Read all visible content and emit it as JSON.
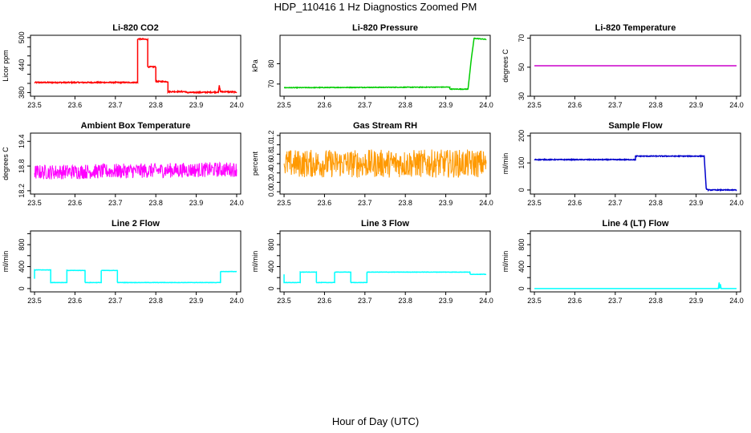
{
  "figure": {
    "title": "HDP_110416  1 Hz Diagnostics Zoomed PM",
    "xlabel": "Hour of Day (UTC)"
  },
  "chart_data": [
    {
      "type": "line",
      "title": "Li-820 CO2",
      "ylabel": "Licor ppm",
      "color": "#ff0000",
      "xlim": [
        23.49,
        24.01
      ],
      "ylim": [
        372,
        505
      ],
      "xticks": [
        23.5,
        23.6,
        23.7,
        23.8,
        23.9,
        24.0
      ],
      "xtick_labels": [
        "23.5",
        "23.6",
        "23.7",
        "23.8",
        "23.9",
        "24.0"
      ],
      "yticks": [
        380,
        400,
        420,
        440,
        460,
        480,
        500
      ],
      "ytick_labels": [
        "380",
        "",
        "",
        "440",
        "",
        "",
        "500"
      ],
      "noise": 1.2,
      "x": [
        23.5,
        23.755,
        23.755,
        23.78,
        23.78,
        23.8,
        23.8,
        23.83,
        23.83,
        23.875,
        23.875,
        23.955,
        23.957,
        23.96,
        23.965,
        24.0
      ],
      "y": [
        402,
        402,
        497,
        496,
        436,
        436,
        404,
        404,
        382,
        382,
        380,
        381,
        395,
        382,
        382,
        381
      ]
    },
    {
      "type": "line",
      "title": "Li-820 Pressure",
      "ylabel": "kPa",
      "color": "#00cc00",
      "xlim": [
        23.49,
        24.01
      ],
      "ylim": [
        64,
        94
      ],
      "xticks": [
        23.5,
        23.6,
        23.7,
        23.8,
        23.9,
        24.0
      ],
      "xtick_labels": [
        "23.5",
        "23.6",
        "23.7",
        "23.8",
        "23.9",
        "24.0"
      ],
      "yticks": [
        70,
        80
      ],
      "ytick_labels": [
        "70",
        "80"
      ],
      "noise": 0.15,
      "x": [
        23.5,
        23.91,
        23.91,
        23.955,
        23.963,
        23.97,
        24.0
      ],
      "y": [
        68.2,
        68.5,
        67.5,
        67.5,
        82,
        92.5,
        92
      ]
    },
    {
      "type": "line",
      "title": "Li-820 Temperature",
      "ylabel": "degrees C",
      "color": "#cc00cc",
      "xlim": [
        23.49,
        24.01
      ],
      "ylim": [
        30,
        72
      ],
      "xticks": [
        23.5,
        23.6,
        23.7,
        23.8,
        23.9,
        24.0
      ],
      "xtick_labels": [
        "23.5",
        "23.6",
        "23.7",
        "23.8",
        "23.9",
        "24.0"
      ],
      "yticks": [
        30,
        50,
        70
      ],
      "ytick_labels": [
        "30",
        "50",
        "70"
      ],
      "noise": 0,
      "x": [
        23.5,
        24.0
      ],
      "y": [
        51,
        51
      ]
    },
    {
      "type": "line",
      "title": "Ambient Box Temperature",
      "ylabel": "degrees C",
      "color": "#ff00ff",
      "xlim": [
        23.49,
        24.01
      ],
      "ylim": [
        18.12,
        19.6
      ],
      "xticks": [
        23.5,
        23.6,
        23.7,
        23.8,
        23.9,
        24.0
      ],
      "xtick_labels": [
        "23.5",
        "23.6",
        "23.7",
        "23.8",
        "23.9",
        "24.0"
      ],
      "yticks": [
        18.2,
        18.8,
        19.4
      ],
      "ytick_labels": [
        "18.2",
        "18.8",
        "19.4"
      ],
      "noise": 0.18,
      "x": [
        23.5,
        24.0
      ],
      "y": [
        18.65,
        18.72
      ]
    },
    {
      "type": "line",
      "title": "Gas Stream RH",
      "ylabel": "percent",
      "color": "#ff9900",
      "xlim": [
        23.49,
        24.01
      ],
      "ylim": [
        -0.05,
        1.25
      ],
      "xticks": [
        23.5,
        23.6,
        23.7,
        23.8,
        23.9,
        24.0
      ],
      "xtick_labels": [
        "23.5",
        "23.6",
        "23.7",
        "23.8",
        "23.9",
        "24.0"
      ],
      "yticks": [
        0.0,
        0.2,
        0.4,
        0.6,
        0.8,
        1.0,
        1.2
      ],
      "ytick_labels": [
        "0.0",
        "0.2",
        "0.4",
        "0.6",
        "0.8",
        "1.0",
        "1.2"
      ],
      "noise": 0.3,
      "x": [
        23.5,
        24.0
      ],
      "y": [
        0.6,
        0.6
      ]
    },
    {
      "type": "line",
      "title": "Sample Flow",
      "ylabel": "ml/min",
      "color": "#0000cc",
      "xlim": [
        23.49,
        24.01
      ],
      "ylim": [
        -15,
        210
      ],
      "xticks": [
        23.5,
        23.6,
        23.7,
        23.8,
        23.9,
        24.0
      ],
      "xtick_labels": [
        "23.5",
        "23.6",
        "23.7",
        "23.8",
        "23.9",
        "24.0"
      ],
      "yticks": [
        0,
        100,
        200
      ],
      "ytick_labels": [
        "0",
        "100",
        "200"
      ],
      "noise": 1.5,
      "x": [
        23.5,
        23.75,
        23.75,
        23.92,
        23.925,
        23.93,
        24.0
      ],
      "y": [
        112,
        112,
        125,
        125,
        5,
        0,
        0
      ]
    },
    {
      "type": "line",
      "title": "Line 2 Flow",
      "ylabel": "ml/min",
      "color": "#00ffff",
      "xlim": [
        23.49,
        24.01
      ],
      "ylim": [
        -60,
        1050
      ],
      "xticks": [
        23.5,
        23.6,
        23.7,
        23.8,
        23.9,
        24.0
      ],
      "xtick_labels": [
        "23.5",
        "23.6",
        "23.7",
        "23.8",
        "23.9",
        "24.0"
      ],
      "yticks": [
        0,
        200,
        400,
        600,
        800,
        1000
      ],
      "ytick_labels": [
        "0",
        "",
        "400",
        "",
        "800",
        ""
      ],
      "noise": 3,
      "x": [
        23.5,
        23.5,
        23.54,
        23.54,
        23.58,
        23.58,
        23.625,
        23.625,
        23.665,
        23.665,
        23.705,
        23.705,
        23.96,
        23.96,
        24.0
      ],
      "y": [
        180,
        340,
        340,
        110,
        110,
        330,
        330,
        110,
        110,
        330,
        330,
        110,
        110,
        310,
        310
      ]
    },
    {
      "type": "line",
      "title": "Line 3 Flow",
      "ylabel": "ml/min",
      "color": "#00ffff",
      "xlim": [
        23.49,
        24.01
      ],
      "ylim": [
        -60,
        1050
      ],
      "xticks": [
        23.5,
        23.6,
        23.7,
        23.8,
        23.9,
        24.0
      ],
      "xtick_labels": [
        "23.5",
        "23.6",
        "23.7",
        "23.8",
        "23.9",
        "24.0"
      ],
      "yticks": [
        0,
        200,
        400,
        600,
        800,
        1000
      ],
      "ytick_labels": [
        "0",
        "",
        "400",
        "",
        "800",
        ""
      ],
      "noise": 3,
      "x": [
        23.5,
        23.5,
        23.505,
        23.54,
        23.54,
        23.58,
        23.58,
        23.625,
        23.625,
        23.665,
        23.665,
        23.705,
        23.705,
        23.96,
        23.96,
        24.0
      ],
      "y": [
        260,
        110,
        110,
        110,
        300,
        300,
        110,
        110,
        300,
        300,
        110,
        110,
        300,
        300,
        260,
        260
      ]
    },
    {
      "type": "line",
      "title": "Line 4 (LT) Flow",
      "ylabel": "ml/min",
      "color": "#00ffff",
      "xlim": [
        23.49,
        24.01
      ],
      "ylim": [
        -60,
        1050
      ],
      "xticks": [
        23.5,
        23.6,
        23.7,
        23.8,
        23.9,
        24.0
      ],
      "xtick_labels": [
        "23.5",
        "23.6",
        "23.7",
        "23.8",
        "23.9",
        "24.0"
      ],
      "yticks": [
        0,
        200,
        400,
        600,
        800,
        1000
      ],
      "ytick_labels": [
        "0",
        "",
        "400",
        "",
        "800",
        ""
      ],
      "noise": 0,
      "x": [
        23.5,
        23.955,
        23.957,
        23.958,
        23.96,
        23.962,
        24.0
      ],
      "y": [
        0,
        0,
        110,
        0,
        80,
        0,
        0
      ]
    }
  ]
}
